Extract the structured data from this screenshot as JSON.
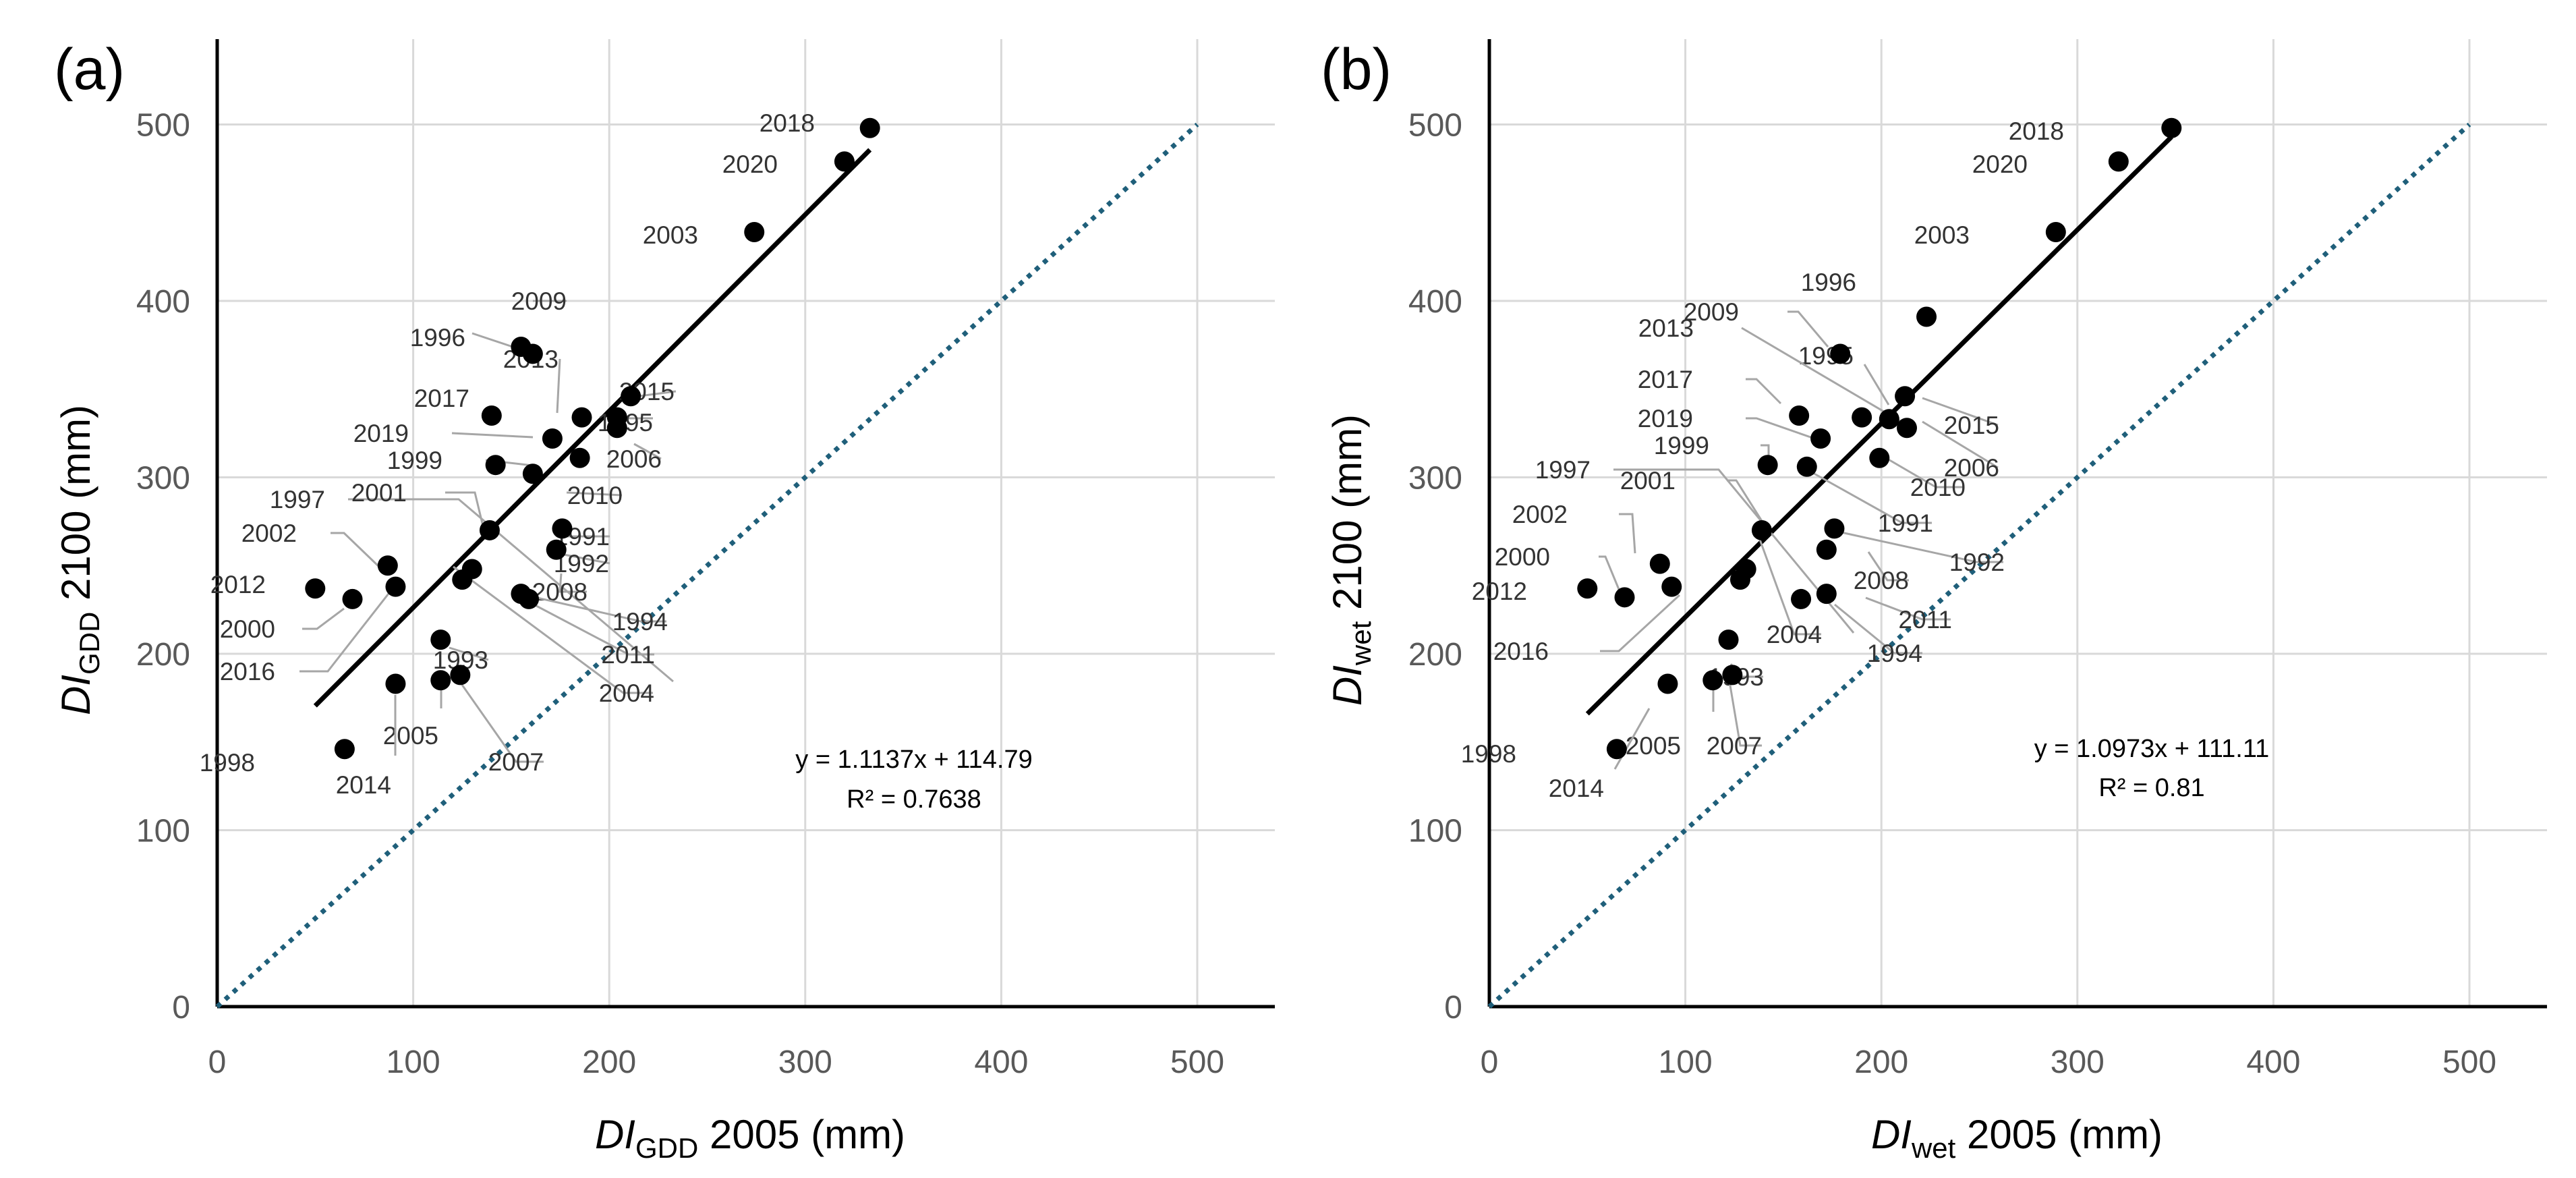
{
  "chart_data": [
    {
      "type": "scatter",
      "panel_label": "(a)",
      "xlabel": {
        "italic": "DI",
        "sub": "GDD",
        "rest": " 2005 (mm)"
      },
      "ylabel": {
        "italic": "DI",
        "sub": "GDD",
        "rest": " 2100 (mm)"
      },
      "xlim": [
        0,
        540
      ],
      "ylim": [
        0,
        550
      ],
      "xticks": [
        0,
        100,
        200,
        300,
        400,
        500
      ],
      "yticks": [
        0,
        100,
        200,
        300,
        400,
        500
      ],
      "grid": true,
      "points": [
        {
          "year": "2018",
          "x": 333,
          "y": 498
        },
        {
          "year": "2020",
          "x": 320,
          "y": 479
        },
        {
          "year": "2003",
          "x": 274,
          "y": 439
        },
        {
          "year": "2009",
          "x": 161,
          "y": 370
        },
        {
          "year": "1996",
          "x": 155,
          "y": 374
        },
        {
          "year": "2013",
          "x": 186,
          "y": 334
        },
        {
          "year": "2015",
          "x": 211,
          "y": 346
        },
        {
          "year": "2017",
          "x": 140,
          "y": 335
        },
        {
          "year": "1995",
          "x": 204,
          "y": 334
        },
        {
          "year": "2019",
          "x": 171,
          "y": 322
        },
        {
          "year": "2006",
          "x": 204,
          "y": 328
        },
        {
          "year": "1999",
          "x": 142,
          "y": 307
        },
        {
          "year": "2010",
          "x": 185,
          "y": 311
        },
        {
          "year": "1997",
          "x": 161,
          "y": 302
        },
        {
          "year": "2001",
          "x": 139,
          "y": 270
        },
        {
          "year": "1991",
          "x": 176,
          "y": 271
        },
        {
          "year": "1992",
          "x": 173,
          "y": 259
        },
        {
          "year": "2002",
          "x": 87,
          "y": 250
        },
        {
          "year": "2008",
          "x": 130,
          "y": 248
        },
        {
          "year": "2012",
          "x": 50,
          "y": 237
        },
        {
          "year": "2016",
          "x": 91,
          "y": 238
        },
        {
          "year": "2000",
          "x": 69,
          "y": 231
        },
        {
          "year": "2004",
          "x": 125,
          "y": 242
        },
        {
          "year": "1994",
          "x": 155,
          "y": 234
        },
        {
          "year": "2011",
          "x": 159,
          "y": 231
        },
        {
          "year": "1993",
          "x": 114,
          "y": 208
        },
        {
          "year": "2005",
          "x": 114,
          "y": 185
        },
        {
          "year": "2007",
          "x": 124,
          "y": 188
        },
        {
          "year": "2014",
          "x": 91,
          "y": 183
        },
        {
          "year": "1998",
          "x": 65,
          "y": 146
        }
      ],
      "trendline": {
        "slope": 1.1137,
        "intercept": 114.79,
        "x_range": [
          50,
          333
        ]
      },
      "one_to_one": {
        "x_range": [
          0,
          500
        ]
      },
      "equation": "y = 1.1137x + 114.79",
      "r2": "R² = 0.7638"
    },
    {
      "type": "scatter",
      "panel_label": "(b)",
      "xlabel": {
        "italic": "DI",
        "sub": "wet",
        "rest": " 2005 (mm)"
      },
      "ylabel": {
        "italic": "DI",
        "sub": "wet",
        "rest": " 2100 (mm)"
      },
      "xlim": [
        0,
        540
      ],
      "ylim": [
        0,
        550
      ],
      "xticks": [
        0,
        100,
        200,
        300,
        400,
        500
      ],
      "yticks": [
        0,
        100,
        200,
        300,
        400,
        500
      ],
      "grid": true,
      "points": [
        {
          "year": "2018",
          "x": 348,
          "y": 498
        },
        {
          "year": "2020",
          "x": 321,
          "y": 479
        },
        {
          "year": "2003",
          "x": 289,
          "y": 439
        },
        {
          "year": "1996",
          "x": 223,
          "y": 391
        },
        {
          "year": "2009",
          "x": 179,
          "y": 370
        },
        {
          "year": "1995",
          "x": 212,
          "y": 346
        },
        {
          "year": "2013",
          "x": 190,
          "y": 334
        },
        {
          "year": "2015",
          "x": 204,
          "y": 333
        },
        {
          "year": "2017",
          "x": 158,
          "y": 335
        },
        {
          "year": "2006",
          "x": 213,
          "y": 328
        },
        {
          "year": "2019",
          "x": 169,
          "y": 322
        },
        {
          "year": "1999",
          "x": 142,
          "y": 307
        },
        {
          "year": "2010",
          "x": 199,
          "y": 311
        },
        {
          "year": "1991",
          "x": 162,
          "y": 306
        },
        {
          "year": "1997",
          "x": 139,
          "y": 270
        },
        {
          "year": "1992",
          "x": 176,
          "y": 271
        },
        {
          "year": "2001",
          "x": 131,
          "y": 248
        },
        {
          "year": "2008",
          "x": 172,
          "y": 259
        },
        {
          "year": "2002",
          "x": 87,
          "y": 251
        },
        {
          "year": "2012",
          "x": 50,
          "y": 237
        },
        {
          "year": "2016",
          "x": 93,
          "y": 238
        },
        {
          "year": "2000",
          "x": 69,
          "y": 232
        },
        {
          "year": "2004",
          "x": 128,
          "y": 242
        },
        {
          "year": "2011",
          "x": 172,
          "y": 234
        },
        {
          "year": "1994",
          "x": 159,
          "y": 231
        },
        {
          "year": "1993",
          "x": 122,
          "y": 208
        },
        {
          "year": "2005",
          "x": 114,
          "y": 185
        },
        {
          "year": "2007",
          "x": 124,
          "y": 188
        },
        {
          "year": "2014",
          "x": 91,
          "y": 183
        },
        {
          "year": "1998",
          "x": 65,
          "y": 146
        }
      ],
      "trendline": {
        "slope": 1.0973,
        "intercept": 111.11,
        "x_range": [
          50,
          348
        ]
      },
      "one_to_one": {
        "x_range": [
          0,
          500
        ]
      },
      "equation": "y = 1.0973x + 111.11",
      "r2": "R² = 0.81"
    }
  ]
}
